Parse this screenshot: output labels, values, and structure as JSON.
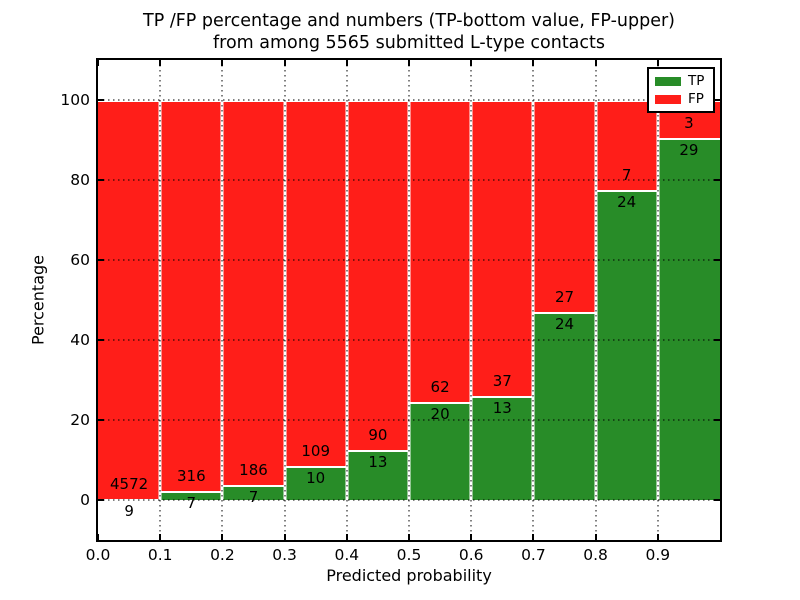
{
  "title": {
    "line1": "TP /FP percentage and numbers (TP-bottom value, FP-upper)",
    "line2": "from among 5565 submitted L-type contacts"
  },
  "x_axis": {
    "label": "Predicted probability",
    "ticks": [
      "0.0",
      "0.1",
      "0.2",
      "0.3",
      "0.4",
      "0.5",
      "0.6",
      "0.7",
      "0.8",
      "0.9"
    ]
  },
  "y_axis": {
    "label": "Percentage",
    "ticks": [
      "0",
      "20",
      "40",
      "60",
      "80",
      "100"
    ]
  },
  "legend": {
    "items": [
      {
        "label": "TP",
        "color": "#288c28"
      },
      {
        "label": "FP",
        "color": "#ff1e19"
      }
    ]
  },
  "chart_data": {
    "type": "bar",
    "stacked": true,
    "normalized_to_percent_per_bin": true,
    "title": "TP /FP percentage and numbers (TP-bottom value, FP-upper) from among 5565 submitted L-type contacts",
    "xlabel": "Predicted probability",
    "ylabel": "Percentage",
    "xlim": [
      0.0,
      1.0
    ],
    "ylim": [
      -10,
      110
    ],
    "grid": true,
    "legend_position": "upper right",
    "bin_edges": [
      0.0,
      0.1,
      0.2,
      0.3,
      0.4,
      0.5,
      0.6,
      0.7,
      0.8,
      0.9,
      1.0
    ],
    "categories": [
      "0.0-0.1",
      "0.1-0.2",
      "0.2-0.3",
      "0.3-0.4",
      "0.4-0.5",
      "0.5-0.6",
      "0.6-0.7",
      "0.7-0.8",
      "0.8-0.9",
      "0.9-1.0"
    ],
    "series": [
      {
        "name": "TP",
        "color": "#288c28",
        "counts": [
          9,
          7,
          7,
          10,
          13,
          20,
          13,
          24,
          24,
          29
        ]
      },
      {
        "name": "FP",
        "color": "#ff1e19",
        "counts": [
          4572,
          316,
          186,
          109,
          90,
          62,
          37,
          27,
          7,
          3
        ]
      }
    ],
    "tp_percent_per_bin": [
      0.2,
      2.17,
      3.63,
      8.4,
      12.62,
      24.39,
      26.0,
      47.06,
      77.42,
      90.63
    ],
    "total_contacts": 5565
  }
}
